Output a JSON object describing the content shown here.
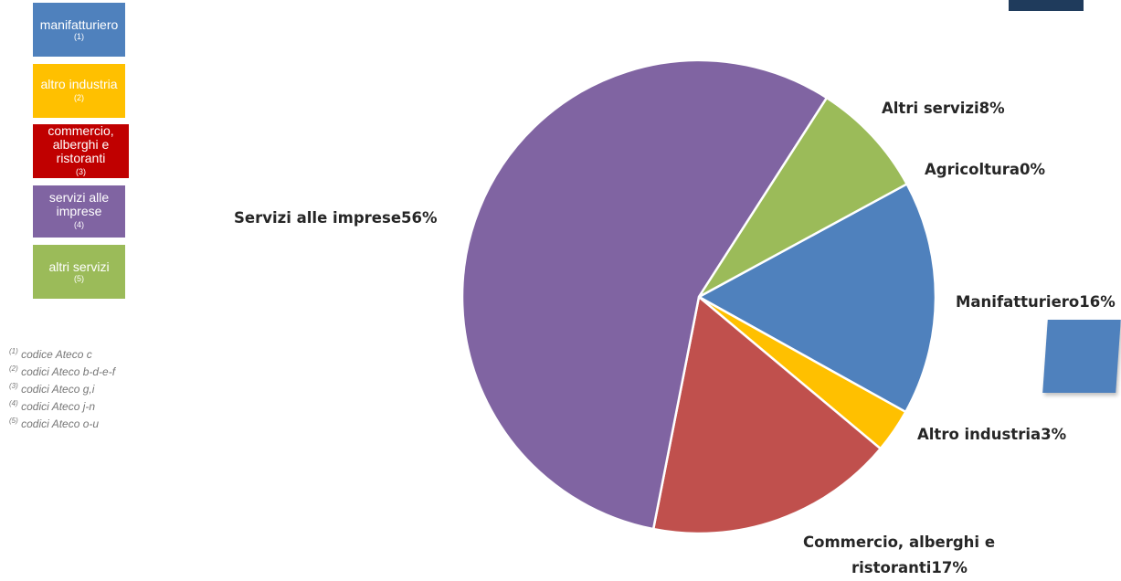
{
  "legend": {
    "items": [
      {
        "label": "manifatturiero",
        "note": "(1)",
        "color": "#4f81bd"
      },
      {
        "label": "altro industria",
        "note": "(2)",
        "color": "#ffc000"
      },
      {
        "label": "commercio, alberghi e ristoranti",
        "note": "(3)",
        "color": "#c00000"
      },
      {
        "label": "servizi alle imprese",
        "note": "(4)",
        "color": "#8064a2"
      },
      {
        "label": "altri servizi",
        "note": "(5)",
        "color": "#9bbb59"
      }
    ]
  },
  "notes": [
    {
      "mark": "(1)",
      "text": "codice Ateco c"
    },
    {
      "mark": "(2)",
      "text": "codici Ateco b-d-e-f"
    },
    {
      "mark": "(3)",
      "text": "codici Ateco g,i"
    },
    {
      "mark": "(4)",
      "text": "codici Ateco j-n"
    },
    {
      "mark": "(5)",
      "text": "codici Ateco o-u"
    }
  ],
  "chart_data": {
    "type": "pie",
    "title": "",
    "slices": [
      {
        "name": "Agricoltura",
        "value": 0,
        "label": "Agricoltura0%",
        "color": "#4f81bd"
      },
      {
        "name": "Manifatturiero",
        "value": 16,
        "label": "Manifatturiero16%",
        "color": "#4f81bd"
      },
      {
        "name": "Altro industria",
        "value": 3,
        "label": "Altro industria3%",
        "color": "#ffc000"
      },
      {
        "name": "Commercio, alberghi e ristoranti",
        "value": 17,
        "label_line1": "Commercio, alberghi e",
        "label_line2": "ristoranti17%",
        "color": "#c0504d"
      },
      {
        "name": "Servizi alle imprese",
        "value": 56,
        "label": "Servizi alle imprese56%",
        "color": "#8064a2"
      },
      {
        "name": "Altri servizi",
        "value": 8,
        "label": "Altri servizi8%",
        "color": "#9bbb59"
      }
    ]
  }
}
